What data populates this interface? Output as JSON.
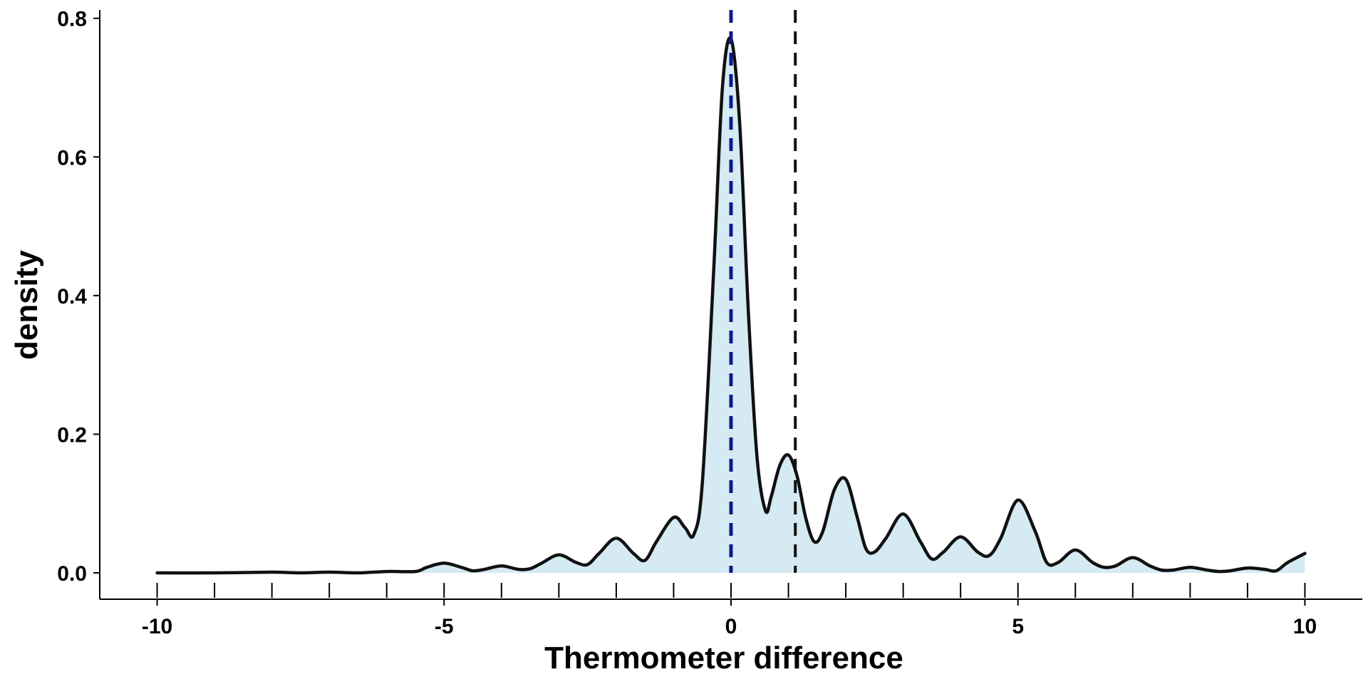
{
  "chart_data": {
    "type": "area",
    "title": "",
    "xlabel": "Thermometer difference",
    "ylabel": "density",
    "xlim": [
      -11,
      11
    ],
    "ylim": [
      -0.038,
      0.812
    ],
    "x_ticks": [
      -10,
      -5,
      0,
      5,
      10
    ],
    "x_tick_labels": [
      "-10",
      "-5",
      "0",
      "5",
      "10"
    ],
    "x_minor_ticks": [
      -10,
      -9,
      -8,
      -7,
      -6,
      -5,
      -4,
      -3,
      -2,
      -1,
      0,
      1,
      2,
      3,
      4,
      5,
      6,
      7,
      8,
      9,
      10
    ],
    "y_ticks": [
      0.0,
      0.2,
      0.4,
      0.6,
      0.8
    ],
    "y_tick_labels": [
      "0.0",
      "0.2",
      "0.4",
      "0.6",
      "0.8"
    ],
    "grid": false,
    "series": [
      {
        "x": [
          -10,
          -9,
          -8,
          -7.5,
          -7,
          -6.5,
          -6,
          -5.5,
          -5.3,
          -5,
          -4.7,
          -4.5,
          -4.3,
          -4,
          -3.7,
          -3.5,
          -3.3,
          -3,
          -2.7,
          -2.5,
          -2.3,
          -2,
          -1.7,
          -1.5,
          -1.3,
          -1,
          -0.8,
          -0.65,
          -0.5,
          -0.3,
          -0.15,
          0,
          0.15,
          0.3,
          0.45,
          0.6,
          0.7,
          0.85,
          1.0,
          1.15,
          1.3,
          1.45,
          1.6,
          1.8,
          2.0,
          2.2,
          2.35,
          2.5,
          2.7,
          3.0,
          3.3,
          3.5,
          3.7,
          4.0,
          4.3,
          4.5,
          4.7,
          5.0,
          5.3,
          5.5,
          5.7,
          6.0,
          6.3,
          6.5,
          6.7,
          7.0,
          7.3,
          7.5,
          7.7,
          8.0,
          8.3,
          8.5,
          8.7,
          9.0,
          9.3,
          9.5,
          9.7,
          10.0
        ],
        "y": [
          0.0,
          0.0,
          0.001,
          0.0,
          0.001,
          0.0,
          0.002,
          0.002,
          0.008,
          0.014,
          0.008,
          0.003,
          0.005,
          0.01,
          0.005,
          0.006,
          0.014,
          0.026,
          0.015,
          0.012,
          0.028,
          0.05,
          0.028,
          0.018,
          0.045,
          0.08,
          0.065,
          0.055,
          0.13,
          0.44,
          0.7,
          0.77,
          0.65,
          0.38,
          0.17,
          0.09,
          0.11,
          0.155,
          0.17,
          0.14,
          0.08,
          0.045,
          0.06,
          0.12,
          0.135,
          0.08,
          0.035,
          0.03,
          0.05,
          0.085,
          0.045,
          0.02,
          0.03,
          0.052,
          0.03,
          0.025,
          0.05,
          0.105,
          0.06,
          0.015,
          0.015,
          0.033,
          0.015,
          0.008,
          0.01,
          0.022,
          0.01,
          0.004,
          0.004,
          0.008,
          0.004,
          0.002,
          0.003,
          0.007,
          0.005,
          0.003,
          0.015,
          0.028
        ],
        "line_color": "#111111",
        "fill_color": "#d5eaf2"
      }
    ],
    "reference_lines": [
      {
        "x": 0,
        "color": "#0b1a8f",
        "style": "dashed"
      },
      {
        "x": 1.12,
        "color": "#111111",
        "style": "dashed"
      }
    ]
  }
}
